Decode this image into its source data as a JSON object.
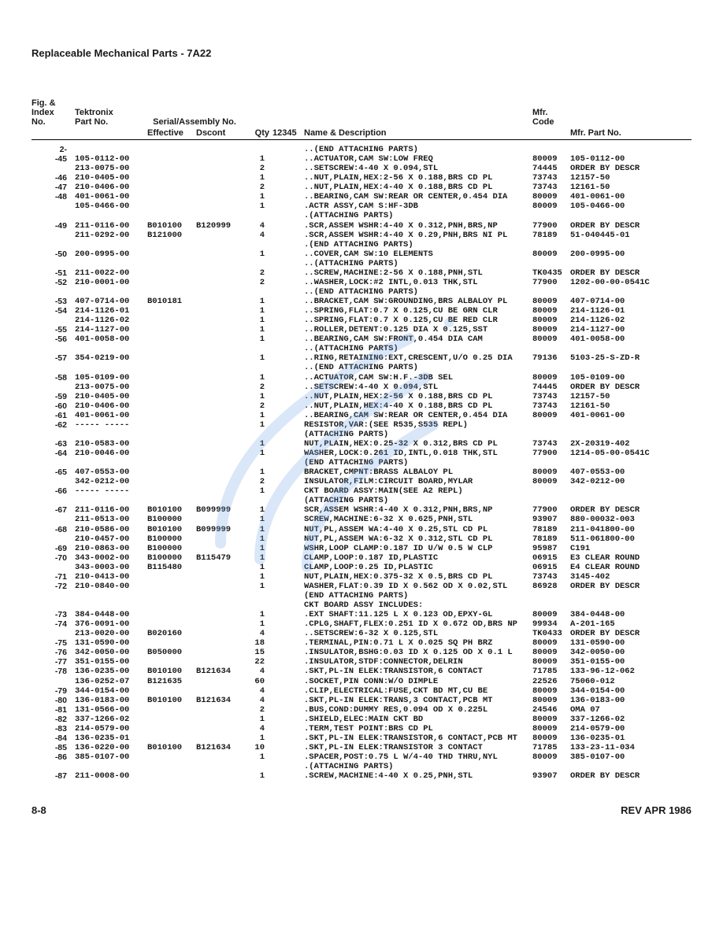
{
  "title": "Replaceable Mechanical Parts - 7A22",
  "footer_left": "8-8",
  "footer_right": "REV APR 1986",
  "headers": {
    "idx": "Fig. &\nIndex\nNo.",
    "part": "Tektronix\nPart No.",
    "serial": "Serial/Assembly No.",
    "eff": "Effective",
    "dsc": "Dscont",
    "qty": "Qty",
    "c12345": "12345",
    "name": "Name & Description",
    "mfr": "Mfr.\nCode",
    "mfrp": "Mfr. Part No."
  },
  "rows": [
    {
      "idx": "2-",
      "part": "",
      "eff": "",
      "dsc": "",
      "qty": "",
      "name": "..(END ATTACHING PARTS)",
      "mfrc": "",
      "mfrp": ""
    },
    {
      "idx": "-45",
      "part": "105-0112-00",
      "eff": "",
      "dsc": "",
      "qty": "1",
      "name": "..ACTUATOR,CAM SW:LOW FREQ",
      "mfrc": "80009",
      "mfrp": "105-0112-00"
    },
    {
      "idx": "",
      "part": "213-0075-00",
      "eff": "",
      "dsc": "",
      "qty": "2",
      "name": "..SETSCREW:4-40 X 0.094,STL",
      "mfrc": "74445",
      "mfrp": "ORDER BY DESCR"
    },
    {
      "idx": "-46",
      "part": "210-0405-00",
      "eff": "",
      "dsc": "",
      "qty": "1",
      "name": "..NUT,PLAIN,HEX:2-56 X 0.188,BRS CD PL",
      "mfrc": "73743",
      "mfrp": "12157-50"
    },
    {
      "idx": "-47",
      "part": "210-0406-00",
      "eff": "",
      "dsc": "",
      "qty": "2",
      "name": "..NUT,PLAIN,HEX:4-40 X 0.188,BRS CD PL",
      "mfrc": "73743",
      "mfrp": "12161-50"
    },
    {
      "idx": "-48",
      "part": "401-0061-00",
      "eff": "",
      "dsc": "",
      "qty": "1",
      "name": "..BEARING,CAM SW:REAR OR CENTER,0.454 DIA",
      "mfrc": "80009",
      "mfrp": "401-0061-00"
    },
    {
      "idx": "",
      "part": "105-0466-00",
      "eff": "",
      "dsc": "",
      "qty": "1",
      "name": ".ACTR ASSY,CAM S:HF-3DB",
      "mfrc": "80009",
      "mfrp": "105-0466-00"
    },
    {
      "idx": "",
      "part": "",
      "eff": "",
      "dsc": "",
      "qty": "",
      "name": ".(ATTACHING PARTS)",
      "mfrc": "",
      "mfrp": ""
    },
    {
      "idx": "-49",
      "part": "211-0116-00",
      "eff": "B010100",
      "dsc": "B120999",
      "qty": "4",
      "name": ".SCR,ASSEM WSHR:4-40 X 0.312,PNH,BRS,NP",
      "mfrc": "77900",
      "mfrp": "ORDER BY DESCR"
    },
    {
      "idx": "",
      "part": "211-0292-00",
      "eff": "B121000",
      "dsc": "",
      "qty": "4",
      "name": ".SCR,ASSEM WSHR:4-40 X 0.29,PNH,BRS NI PL",
      "mfrc": "78189",
      "mfrp": "51-040445-01"
    },
    {
      "idx": "",
      "part": "",
      "eff": "",
      "dsc": "",
      "qty": "",
      "name": ".(END ATTACHING PARTS)",
      "mfrc": "",
      "mfrp": ""
    },
    {
      "idx": "-50",
      "part": "200-0995-00",
      "eff": "",
      "dsc": "",
      "qty": "1",
      "name": "..COVER,CAM SW:10 ELEMENTS",
      "mfrc": "80009",
      "mfrp": "200-0995-00"
    },
    {
      "idx": "",
      "part": "",
      "eff": "",
      "dsc": "",
      "qty": "",
      "name": "..(ATTACHING PARTS)",
      "mfrc": "",
      "mfrp": ""
    },
    {
      "idx": "-51",
      "part": "211-0022-00",
      "eff": "",
      "dsc": "",
      "qty": "2",
      "name": "..SCREW,MACHINE:2-56 X 0.188,PNH,STL",
      "mfrc": "TK0435",
      "mfrp": "ORDER BY DESCR"
    },
    {
      "idx": "-52",
      "part": "210-0001-00",
      "eff": "",
      "dsc": "",
      "qty": "2",
      "name": "..WASHER,LOCK:#2 INTL,0.013 THK,STL",
      "mfrc": "77900",
      "mfrp": "1202-00-00-0541C"
    },
    {
      "idx": "",
      "part": "",
      "eff": "",
      "dsc": "",
      "qty": "",
      "name": "..(END ATTACHING PARTS)",
      "mfrc": "",
      "mfrp": ""
    },
    {
      "idx": "-53",
      "part": "407-0714-00",
      "eff": "B010181",
      "dsc": "",
      "qty": "1",
      "name": "..BRACKET,CAM SW:GROUNDING,BRS ALBALOY PL",
      "mfrc": "80009",
      "mfrp": "407-0714-00"
    },
    {
      "idx": "-54",
      "part": "214-1126-01",
      "eff": "",
      "dsc": "",
      "qty": "1",
      "name": "..SPRING,FLAT:0.7 X 0.125,CU BE GRN CLR",
      "mfrc": "80009",
      "mfrp": "214-1126-01"
    },
    {
      "idx": "",
      "part": "214-1126-02",
      "eff": "",
      "dsc": "",
      "qty": "1",
      "name": "..SPRING,FLAT:0.7 X 0.125,CU BE RED CLR",
      "mfrc": "80009",
      "mfrp": "214-1126-02"
    },
    {
      "idx": "-55",
      "part": "214-1127-00",
      "eff": "",
      "dsc": "",
      "qty": "1",
      "name": "..ROLLER,DETENT:0.125 DIA X 0.125,SST",
      "mfrc": "80009",
      "mfrp": "214-1127-00"
    },
    {
      "idx": "-56",
      "part": "401-0058-00",
      "eff": "",
      "dsc": "",
      "qty": "1",
      "name": "..BEARING,CAM SW:FRONT,0.454 DIA CAM",
      "mfrc": "80009",
      "mfrp": "401-0058-00"
    },
    {
      "idx": "",
      "part": "",
      "eff": "",
      "dsc": "",
      "qty": "",
      "name": "..(ATTACHING PARTS)",
      "mfrc": "",
      "mfrp": ""
    },
    {
      "idx": "-57",
      "part": "354-0219-00",
      "eff": "",
      "dsc": "",
      "qty": "1",
      "name": "..RING,RETAINING:EXT,CRESCENT,U/O 0.25 DIA",
      "mfrc": "79136",
      "mfrp": "5103-25-S-ZD-R"
    },
    {
      "idx": "",
      "part": "",
      "eff": "",
      "dsc": "",
      "qty": "",
      "name": "..(END ATTACHING PARTS)",
      "mfrc": "",
      "mfrp": ""
    },
    {
      "idx": "-58",
      "part": "105-0109-00",
      "eff": "",
      "dsc": "",
      "qty": "1",
      "name": "..ACTUATOR,CAM SW:H.F.-3DB SEL",
      "mfrc": "80009",
      "mfrp": "105-0109-00"
    },
    {
      "idx": "",
      "part": "213-0075-00",
      "eff": "",
      "dsc": "",
      "qty": "2",
      "name": "..SETSCREW:4-40 X 0.094,STL",
      "mfrc": "74445",
      "mfrp": "ORDER BY DESCR"
    },
    {
      "idx": "-59",
      "part": "210-0405-00",
      "eff": "",
      "dsc": "",
      "qty": "1",
      "name": "..NUT,PLAIN,HEX:2-56 X 0.188,BRS CD PL",
      "mfrc": "73743",
      "mfrp": "12157-50"
    },
    {
      "idx": "-60",
      "part": "210-0406-00",
      "eff": "",
      "dsc": "",
      "qty": "2",
      "name": "..NUT,PLAIN,HEX:4-40 X 0.188,BRS CD PL",
      "mfrc": "73743",
      "mfrp": "12161-50"
    },
    {
      "idx": "-61",
      "part": "401-0061-00",
      "eff": "",
      "dsc": "",
      "qty": "1",
      "name": "..BEARING,CAM SW:REAR OR CENTER,0.454 DIA",
      "mfrc": "80009",
      "mfrp": "401-0061-00"
    },
    {
      "idx": "-62",
      "part": "----- -----",
      "eff": "",
      "dsc": "",
      "qty": "1",
      "name": "RESISTOR,VAR:(SEE R535,S535 REPL)",
      "mfrc": "",
      "mfrp": ""
    },
    {
      "idx": "",
      "part": "",
      "eff": "",
      "dsc": "",
      "qty": "",
      "name": "(ATTACHING PARTS)",
      "mfrc": "",
      "mfrp": ""
    },
    {
      "idx": "-63",
      "part": "210-0583-00",
      "eff": "",
      "dsc": "",
      "qty": "1",
      "name": "NUT,PLAIN,HEX:0.25-32 X 0.312,BRS CD PL",
      "mfrc": "73743",
      "mfrp": "2X-20319-402"
    },
    {
      "idx": "-64",
      "part": "210-0046-00",
      "eff": "",
      "dsc": "",
      "qty": "1",
      "name": "WASHER,LOCK:0.261 ID,INTL,0.018 THK,STL",
      "mfrc": "77900",
      "mfrp": "1214-05-00-0541C"
    },
    {
      "idx": "",
      "part": "",
      "eff": "",
      "dsc": "",
      "qty": "",
      "name": "(END ATTACHING PARTS)",
      "mfrc": "",
      "mfrp": ""
    },
    {
      "idx": "-65",
      "part": "407-0553-00",
      "eff": "",
      "dsc": "",
      "qty": "1",
      "name": "BRACKET,CMPNT:BRASS ALBALOY PL",
      "mfrc": "80009",
      "mfrp": "407-0553-00"
    },
    {
      "idx": "",
      "part": "342-0212-00",
      "eff": "",
      "dsc": "",
      "qty": "2",
      "name": "INSULATOR,FILM:CIRCUIT BOARD,MYLAR",
      "mfrc": "80009",
      "mfrp": "342-0212-00"
    },
    {
      "idx": "-66",
      "part": "----- -----",
      "eff": "",
      "dsc": "",
      "qty": "1",
      "name": "CKT BOARD ASSY:MAIN(SEE A2 REPL)",
      "mfrc": "",
      "mfrp": ""
    },
    {
      "idx": "",
      "part": "",
      "eff": "",
      "dsc": "",
      "qty": "",
      "name": "(ATTACHING PARTS)",
      "mfrc": "",
      "mfrp": ""
    },
    {
      "idx": "-67",
      "part": "211-0116-00",
      "eff": "B010100",
      "dsc": "B099999",
      "qty": "1",
      "name": "SCR,ASSEM WSHR:4-40 X 0.312,PNH,BRS,NP",
      "mfrc": "77900",
      "mfrp": "ORDER BY DESCR"
    },
    {
      "idx": "",
      "part": "211-0513-00",
      "eff": "B100000",
      "dsc": "",
      "qty": "1",
      "name": "SCREW,MACHINE:6-32 X 0.625,PNH,STL",
      "mfrc": "93907",
      "mfrp": "880-00032-003"
    },
    {
      "idx": "-68",
      "part": "210-0586-00",
      "eff": "B010100",
      "dsc": "B099999",
      "qty": "1",
      "name": "NUT,PL,ASSEM WA:4-40 X 0.25,STL CD PL",
      "mfrc": "78189",
      "mfrp": "211-041800-00"
    },
    {
      "idx": "",
      "part": "210-0457-00",
      "eff": "B100000",
      "dsc": "",
      "qty": "1",
      "name": "NUT,PL,ASSEM WA:6-32 X 0.312,STL CD PL",
      "mfrc": "78189",
      "mfrp": "511-061800-00"
    },
    {
      "idx": "-69",
      "part": "210-0863-00",
      "eff": "B100000",
      "dsc": "",
      "qty": "1",
      "name": "WSHR,LOOP CLAMP:0.187 ID U/W 0.5 W CLP",
      "mfrc": "95987",
      "mfrp": "C191"
    },
    {
      "idx": "-70",
      "part": "343-0002-00",
      "eff": "B100000",
      "dsc": "B115479",
      "qty": "1",
      "name": "CLAMP,LOOP:0.187 ID,PLASTIC",
      "mfrc": "06915",
      "mfrp": "E3 CLEAR ROUND"
    },
    {
      "idx": "",
      "part": "343-0003-00",
      "eff": "B115480",
      "dsc": "",
      "qty": "1",
      "name": "CLAMP,LOOP:0.25 ID,PLASTIC",
      "mfrc": "06915",
      "mfrp": "E4 CLEAR ROUND"
    },
    {
      "idx": "-71",
      "part": "210-0413-00",
      "eff": "",
      "dsc": "",
      "qty": "1",
      "name": "NUT,PLAIN,HEX:0.375-32 X 0.5,BRS CD PL",
      "mfrc": "73743",
      "mfrp": "3145-402"
    },
    {
      "idx": "-72",
      "part": "210-0840-00",
      "eff": "",
      "dsc": "",
      "qty": "1",
      "name": "WASHER,FLAT:0.39 ID X 0.562 OD X 0.02,STL",
      "mfrc": "86928",
      "mfrp": "ORDER BY DESCR"
    },
    {
      "idx": "",
      "part": "",
      "eff": "",
      "dsc": "",
      "qty": "",
      "name": "(END ATTACHING PARTS)",
      "mfrc": "",
      "mfrp": ""
    },
    {
      "idx": "",
      "part": "",
      "eff": "",
      "dsc": "",
      "qty": "",
      "name": "CKT BOARD ASSY INCLUDES:",
      "mfrc": "",
      "mfrp": ""
    },
    {
      "idx": "-73",
      "part": "384-0448-00",
      "eff": "",
      "dsc": "",
      "qty": "1",
      "name": ".EXT SHAFT:11.125 L X 0.123 OD,EPXY-GL",
      "mfrc": "80009",
      "mfrp": "384-0448-00"
    },
    {
      "idx": "-74",
      "part": "376-0091-00",
      "eff": "",
      "dsc": "",
      "qty": "1",
      "name": ".CPLG,SHAFT,FLEX:0.251 ID X 0.672 OD,BRS NP",
      "mfrc": "99934",
      "mfrp": "A-201-165"
    },
    {
      "idx": "",
      "part": "213-0020-00",
      "eff": "B020160",
      "dsc": "",
      "qty": "4",
      "name": "..SETSCREW:6-32 X 0.125,STL",
      "mfrc": "TK0433",
      "mfrp": "ORDER BY DESCR"
    },
    {
      "idx": "-75",
      "part": "131-0590-00",
      "eff": "",
      "dsc": "",
      "qty": "18",
      "name": ".TERMINAL,PIN:0.71 L X 0.025 SQ PH BRZ",
      "mfrc": "80009",
      "mfrp": "131-0590-00"
    },
    {
      "idx": "-76",
      "part": "342-0050-00",
      "eff": "B050000",
      "dsc": "",
      "qty": "15",
      "name": ".INSULATOR,BSHG:0.03 ID X 0.125 OD X 0.1 L",
      "mfrc": "80009",
      "mfrp": "342-0050-00"
    },
    {
      "idx": "-77",
      "part": "351-0155-00",
      "eff": "",
      "dsc": "",
      "qty": "22",
      "name": ".INSULATOR,STDF:CONNECTOR,DELRIN",
      "mfrc": "80009",
      "mfrp": "351-0155-00"
    },
    {
      "idx": "-78",
      "part": "136-0235-00",
      "eff": "B010100",
      "dsc": "B121634",
      "qty": "4",
      "name": ".SKT,PL-IN ELEK:TRANSISTOR,6 CONTACT",
      "mfrc": "71785",
      "mfrp": "133-96-12-062"
    },
    {
      "idx": "",
      "part": "136-0252-07",
      "eff": "B121635",
      "dsc": "",
      "qty": "60",
      "name": ".SOCKET,PIN CONN:W/O DIMPLE",
      "mfrc": "22526",
      "mfrp": "75060-012"
    },
    {
      "idx": "-79",
      "part": "344-0154-00",
      "eff": "",
      "dsc": "",
      "qty": "4",
      "name": ".CLIP,ELECTRICAL:FUSE,CKT BD MT,CU BE",
      "mfrc": "80009",
      "mfrp": "344-0154-00"
    },
    {
      "idx": "-80",
      "part": "136-0183-00",
      "eff": "B010100",
      "dsc": "B121634",
      "qty": "4",
      "name": ".SKT,PL-IN ELEK:TRANS,3 CONTACT,PCB MT",
      "mfrc": "80009",
      "mfrp": "136-0183-00"
    },
    {
      "idx": "-81",
      "part": "131-0566-00",
      "eff": "",
      "dsc": "",
      "qty": "2",
      "name": ".BUS,COND:DUMMY RES,0.094 OD X 0.225L",
      "mfrc": "24546",
      "mfrp": "OMA 07"
    },
    {
      "idx": "-82",
      "part": "337-1266-02",
      "eff": "",
      "dsc": "",
      "qty": "1",
      "name": ".SHIELD,ELEC:MAIN CKT BD",
      "mfrc": "80009",
      "mfrp": "337-1266-02"
    },
    {
      "idx": "-83",
      "part": "214-0579-00",
      "eff": "",
      "dsc": "",
      "qty": "4",
      "name": ".TERM,TEST POINT:BRS CD PL",
      "mfrc": "80009",
      "mfrp": "214-0579-00"
    },
    {
      "idx": "-84",
      "part": "136-0235-01",
      "eff": "",
      "dsc": "",
      "qty": "1",
      "name": ".SKT,PL-IN ELEK:TRANSISTOR,6 CONTACT,PCB MT",
      "mfrc": "80009",
      "mfrp": "136-0235-01"
    },
    {
      "idx": "-85",
      "part": "136-0220-00",
      "eff": "B010100",
      "dsc": "B121634",
      "qty": "10",
      "name": ".SKT,PL-IN ELEK:TRANSISTOR 3 CONTACT",
      "mfrc": "71785",
      "mfrp": "133-23-11-034"
    },
    {
      "idx": "-86",
      "part": "385-0107-00",
      "eff": "",
      "dsc": "",
      "qty": "1",
      "name": ".SPACER,POST:0.75 L W/4-40 THD THRU,NYL",
      "mfrc": "80009",
      "mfrp": "385-0107-00"
    },
    {
      "idx": "",
      "part": "",
      "eff": "",
      "dsc": "",
      "qty": "",
      "name": ".(ATTACHING PARTS)",
      "mfrc": "",
      "mfrp": ""
    },
    {
      "idx": "-87",
      "part": "211-0008-00",
      "eff": "",
      "dsc": "",
      "qty": "1",
      "name": ".SCREW,MACHINE:4-40 X 0.25,PNH,STL",
      "mfrc": "93907",
      "mfrp": "ORDER BY DESCR"
    }
  ],
  "watermark_color": "#6aa3e6"
}
